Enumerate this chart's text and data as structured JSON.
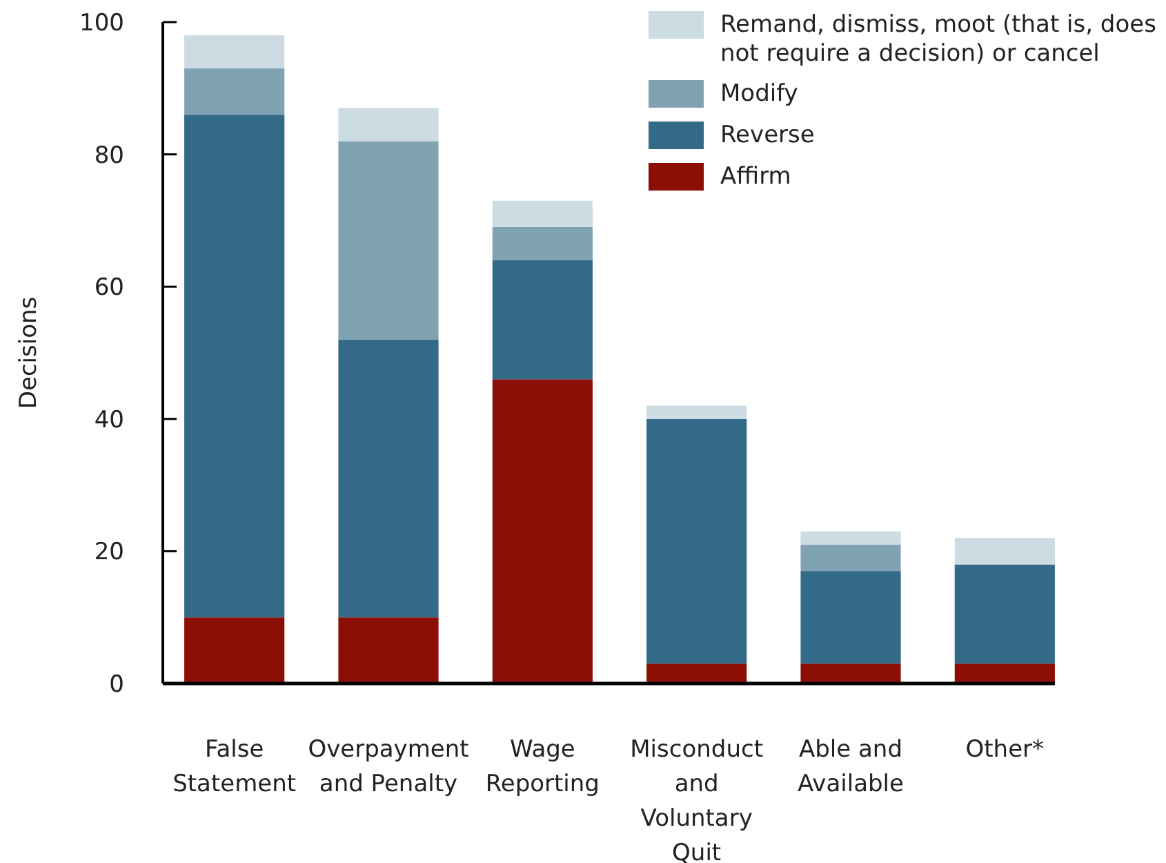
{
  "chart_data": {
    "type": "bar",
    "stacked": true,
    "ylabel": "Decisions",
    "categories": [
      "False Statement",
      "Overpayment and Penalty",
      "Wage Reporting",
      "Misconduct and Voluntary Quit",
      "Able and Available",
      "Other*"
    ],
    "series": [
      {
        "name": "Affirm",
        "color": "#8b0f04",
        "values": [
          10,
          10,
          46,
          3,
          3,
          3
        ]
      },
      {
        "name": "Reverse",
        "color": "#336a87",
        "values": [
          76,
          42,
          18,
          37,
          14,
          15
        ]
      },
      {
        "name": "Modify",
        "color": "#80a3b4",
        "values": [
          7,
          30,
          5,
          0,
          4,
          0
        ]
      },
      {
        "name": "Remand, dismiss, moot (that is, does not require a decision) or cancel",
        "color": "#cddbe2",
        "values": [
          5,
          5,
          4,
          2,
          2,
          4
        ]
      }
    ],
    "ylim": [
      0,
      100
    ],
    "yticks": [
      0,
      20,
      40,
      60,
      80,
      100
    ],
    "legend": "top right"
  }
}
